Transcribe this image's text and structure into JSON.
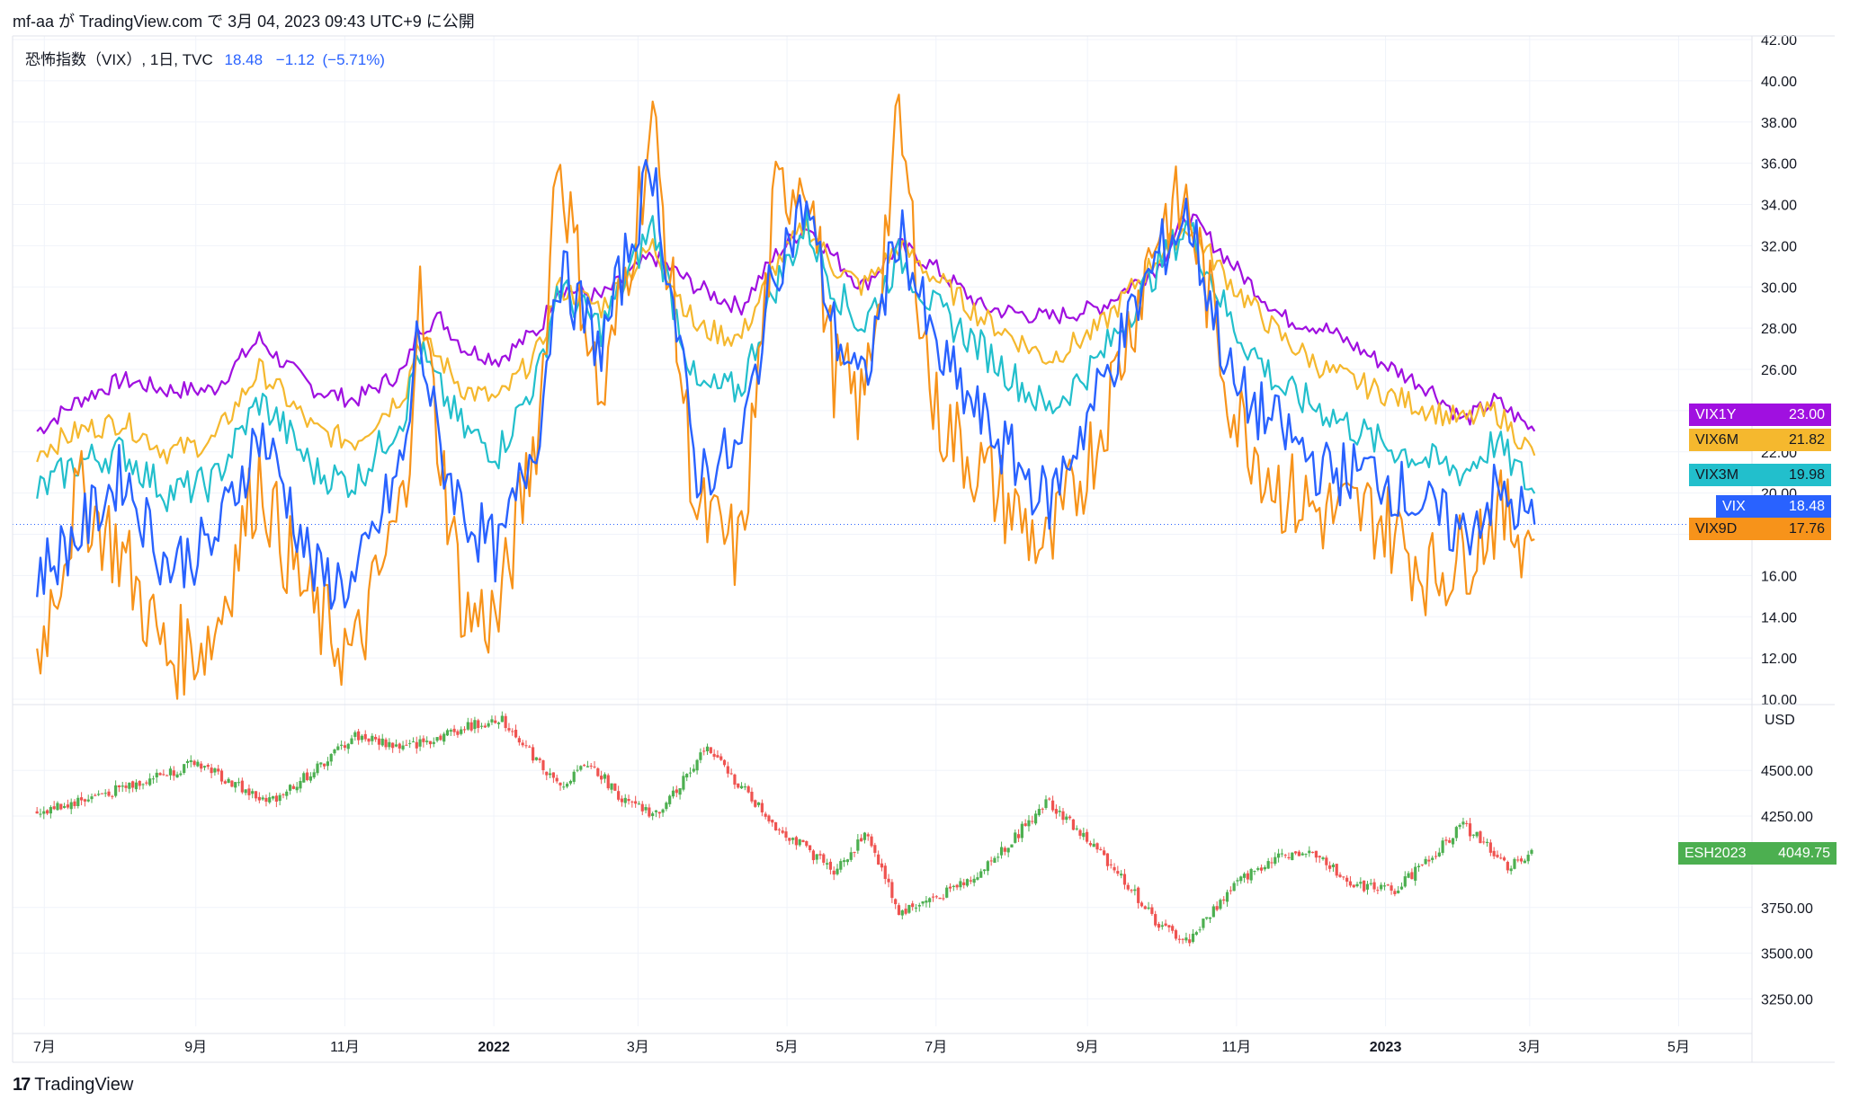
{
  "header": {
    "published_line": "mf-aa が TradingView.com で 3月 04, 2023 09:43 UTC+9 に公開"
  },
  "legend": {
    "symbol_line": "恐怖指数（VIX）, 1日, TVC",
    "last": "18.48",
    "change": "−1.12",
    "change_pct": "(−5.71%)"
  },
  "branding": {
    "logo_text": "TradingView"
  },
  "colors": {
    "vix": "#2962ff",
    "vix9d": "#f7931a",
    "vix3m": "#22bfcc",
    "vix6m": "#f5b82e",
    "vix1y": "#a010e0",
    "candle_up": "#26a69a",
    "candle_up_esh": "#4caf50",
    "candle_down": "#ef5350"
  },
  "chart_data": [
    {
      "type": "line",
      "title": "恐怖指数（VIX）, 1日, TVC",
      "x": [
        "2021-06-28",
        "2021-07-15",
        "2021-08-02",
        "2021-08-20",
        "2021-09-08",
        "2021-09-27",
        "2021-10-05",
        "2021-10-20",
        "2021-11-05",
        "2021-11-26",
        "2021-12-01",
        "2021-12-10",
        "2021-12-20",
        "2022-01-03",
        "2022-01-20",
        "2022-01-27",
        "2022-02-14",
        "2022-03-07",
        "2022-03-25",
        "2022-04-12",
        "2022-04-26",
        "2022-05-09",
        "2022-05-20",
        "2022-06-01",
        "2022-06-16",
        "2022-06-30",
        "2022-07-20",
        "2022-08-16",
        "2022-09-06",
        "2022-09-30",
        "2022-10-12",
        "2022-10-31",
        "2022-11-20",
        "2022-12-07",
        "2022-12-28",
        "2023-01-20",
        "2023-02-02",
        "2023-02-15",
        "2023-03-03"
      ],
      "series": [
        {
          "name": "VIX",
          "values": [
            16.0,
            18.0,
            21.0,
            16.5,
            17.5,
            23.0,
            21.0,
            16.0,
            15.5,
            22.0,
            28.0,
            22.0,
            19.0,
            17.0,
            23.5,
            31.0,
            27.0,
            36.0,
            21.0,
            22.0,
            31.0,
            34.0,
            28.0,
            25.0,
            33.0,
            27.0,
            23.5,
            19.5,
            25.0,
            31.5,
            33.5,
            25.0,
            23.0,
            21.0,
            21.0,
            19.0,
            18.0,
            20.0,
            18.48
          ]
        },
        {
          "name": "VIX9D",
          "values": [
            12.0,
            20.0,
            17.0,
            12.0,
            13.0,
            21.0,
            18.0,
            14.0,
            12.0,
            20.0,
            30.0,
            22.0,
            14.0,
            14.0,
            24.0,
            37.0,
            24.0,
            38.0,
            19.0,
            17.0,
            34.0,
            36.0,
            26.0,
            24.0,
            38.0,
            24.0,
            21.0,
            17.0,
            23.0,
            33.0,
            34.0,
            24.0,
            20.0,
            19.0,
            19.0,
            16.0,
            17.0,
            19.0,
            17.76
          ]
        },
        {
          "name": "VIX3M",
          "values": [
            20.0,
            21.5,
            22.0,
            20.0,
            20.5,
            24.5,
            23.5,
            21.0,
            20.5,
            24.0,
            27.0,
            25.0,
            23.0,
            22.0,
            26.0,
            30.0,
            28.0,
            33.0,
            25.0,
            25.0,
            30.0,
            33.0,
            30.0,
            28.0,
            31.5,
            29.0,
            27.0,
            24.0,
            26.5,
            31.0,
            33.0,
            28.0,
            25.0,
            24.0,
            22.5,
            21.5,
            21.0,
            22.5,
            19.98
          ]
        },
        {
          "name": "VIX6M",
          "values": [
            22.0,
            23.0,
            23.5,
            22.0,
            22.5,
            26.0,
            25.0,
            23.0,
            22.5,
            25.0,
            27.5,
            26.5,
            25.0,
            24.5,
            27.0,
            30.0,
            29.0,
            32.0,
            28.0,
            27.5,
            31.0,
            33.0,
            31.0,
            30.0,
            32.0,
            30.5,
            28.5,
            26.5,
            28.0,
            31.5,
            33.0,
            30.0,
            27.5,
            26.0,
            25.0,
            24.0,
            23.5,
            24.0,
            21.82
          ]
        },
        {
          "name": "VIX1Y",
          "values": [
            23.0,
            24.5,
            25.5,
            25.0,
            25.0,
            27.5,
            26.5,
            25.0,
            24.5,
            26.0,
            28.0,
            28.5,
            27.0,
            26.5,
            28.0,
            30.0,
            29.5,
            31.5,
            30.0,
            29.0,
            31.5,
            33.0,
            31.5,
            30.0,
            32.0,
            31.0,
            29.0,
            28.5,
            29.0,
            31.0,
            33.5,
            31.0,
            28.5,
            28.0,
            26.5,
            25.0,
            23.5,
            24.5,
            23.0
          ]
        }
      ],
      "ylim": [
        10,
        42
      ],
      "y_ticks": [
        "42.00",
        "40.00",
        "38.00",
        "36.00",
        "34.00",
        "32.00",
        "30.00",
        "28.00",
        "26.00",
        "24.00",
        "22.00",
        "20.00",
        "18.00",
        "16.00",
        "14.00",
        "12.00",
        "10.00"
      ],
      "last_labels": [
        {
          "name": "VIX1Y",
          "value": "23.00"
        },
        {
          "name": "VIX6M",
          "value": "21.82"
        },
        {
          "name": "VIX3M",
          "value": "19.98"
        },
        {
          "name": "VIX",
          "value": "18.48"
        },
        {
          "name": "VIX9D",
          "value": "17.76"
        }
      ],
      "current_price_line": 18.48
    },
    {
      "type": "candlestick",
      "symbol": "ESH2023",
      "currency": "USD",
      "x": [
        "2021-06-28",
        "2021-07-20",
        "2021-09-02",
        "2021-09-30",
        "2021-10-20",
        "2021-11-05",
        "2021-11-26",
        "2021-12-15",
        "2022-01-04",
        "2022-01-27",
        "2022-02-10",
        "2022-02-24",
        "2022-03-08",
        "2022-03-29",
        "2022-04-26",
        "2022-05-20",
        "2022-06-03",
        "2022-06-16",
        "2022-07-05",
        "2022-07-20",
        "2022-08-16",
        "2022-09-13",
        "2022-09-30",
        "2022-10-12",
        "2022-10-31",
        "2022-11-15",
        "2022-12-01",
        "2022-12-19",
        "2023-01-05",
        "2023-02-02",
        "2023-02-20",
        "2023-03-03"
      ],
      "close": [
        4270,
        4350,
        4540,
        4320,
        4500,
        4690,
        4620,
        4710,
        4790,
        4420,
        4530,
        4320,
        4250,
        4620,
        4200,
        3950,
        4150,
        3720,
        3830,
        3950,
        4330,
        3950,
        3650,
        3560,
        3870,
        4010,
        4080,
        3870,
        3850,
        4200,
        3980,
        4049.75
      ],
      "ylim": [
        3100,
        4850
      ],
      "y_ticks": [
        "4500.00",
        "4250.00",
        "3750.00",
        "3500.00",
        "3250.00"
      ],
      "last_label": {
        "name": "ESH2023",
        "value": "4049.75"
      }
    }
  ],
  "x_axis": {
    "labels": [
      "7月",
      "9月",
      "11月",
      "2022",
      "3月",
      "5月",
      "7月",
      "9月",
      "11月",
      "2023",
      "3月",
      "5月"
    ],
    "bold_labels": [
      "2022",
      "2023"
    ]
  }
}
